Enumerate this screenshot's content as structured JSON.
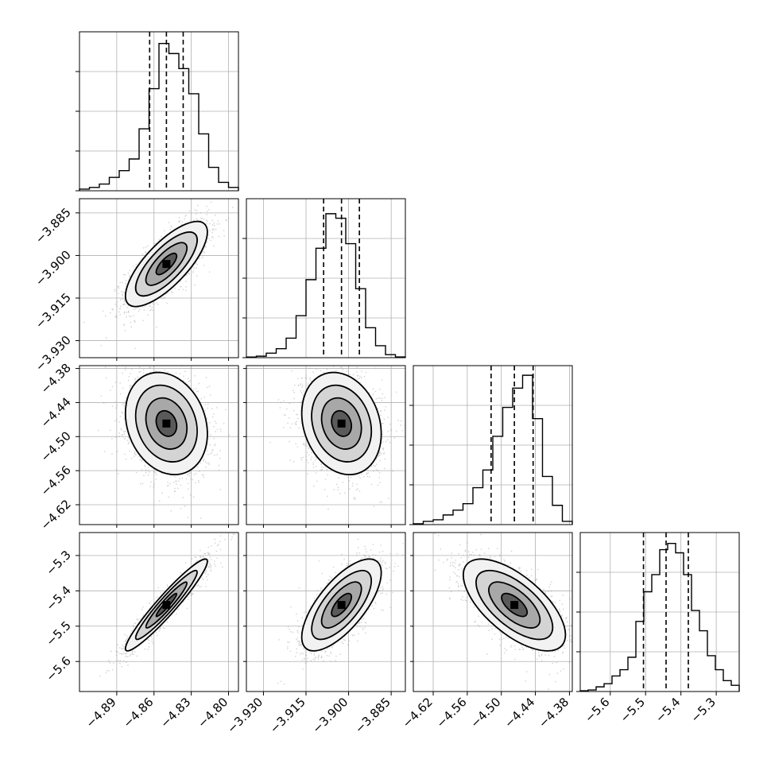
{
  "chart_data": {
    "type": "corner",
    "title": "",
    "grid": true,
    "parameters": [
      {
        "range": [
          -4.92,
          -4.792
        ],
        "ticks": [
          -4.89,
          -4.86,
          -4.83,
          -4.8
        ],
        "tick_labels": [
          "−4.89",
          "−4.86",
          "−4.83",
          "−4.80"
        ],
        "histogram": {
          "bins": [
            -4.92,
            -4.912,
            -4.904,
            -4.896,
            -4.888,
            -4.88,
            -4.872,
            -4.864,
            -4.856,
            -4.848,
            -4.84,
            -4.832,
            -4.824,
            -4.816,
            -4.808,
            -4.8,
            -4.792
          ],
          "counts": [
            1,
            2,
            4,
            8,
            12,
            19,
            37,
            61,
            88,
            82,
            73,
            58,
            34,
            14,
            5,
            2
          ],
          "max": 95
        },
        "quantiles": [
          -4.8635,
          -4.85,
          -4.8365
        ]
      },
      {
        "range": [
          -3.936,
          -3.88
        ],
        "ticks": [
          -3.93,
          -3.915,
          -3.9,
          -3.885
        ],
        "tick_labels": [
          "−3.930",
          "−3.915",
          "−3.900",
          "−3.885"
        ],
        "histogram": {
          "bins": [
            -3.936,
            -3.9325,
            -3.929,
            -3.9255,
            -3.922,
            -3.9185,
            -3.915,
            -3.9115,
            -3.908,
            -3.9045,
            -3.901,
            -3.8975,
            -3.894,
            -3.8905,
            -3.887,
            -3.8835,
            -3.88
          ],
          "counts": [
            0.4,
            1,
            3,
            6,
            13,
            28,
            52,
            73,
            96,
            93,
            76,
            46,
            20,
            8,
            2,
            0.5
          ],
          "max": 106
        },
        "quantiles": [
          -3.9088,
          -3.9025,
          -3.8962
        ]
      },
      {
        "range": [
          -4.655,
          -4.375
        ],
        "ticks": [
          -4.62,
          -4.56,
          -4.5,
          -4.44,
          -4.38
        ],
        "tick_labels": [
          "−4.62",
          "−4.56",
          "−4.50",
          "−4.44",
          "−4.38"
        ],
        "histogram": {
          "bins": [
            -4.655,
            -4.6375,
            -4.62,
            -4.6025,
            -4.585,
            -4.5675,
            -4.55,
            -4.5325,
            -4.515,
            -4.4975,
            -4.48,
            -4.4625,
            -4.445,
            -4.4275,
            -4.41,
            -4.3925,
            -4.375
          ],
          "counts": [
            0.5,
            2,
            3,
            6,
            9,
            13,
            23,
            34,
            55,
            73,
            85,
            93,
            66,
            30,
            12,
            2
          ],
          "max": 99
        },
        "quantiles": [
          -4.518,
          -4.477,
          -4.444
        ]
      },
      {
        "range": [
          -5.685,
          -5.235
        ],
        "ticks": [
          -5.6,
          -5.5,
          -5.4,
          -5.3
        ],
        "tick_labels": [
          "−5.6",
          "−5.5",
          "−5.4",
          "−5.3"
        ],
        "histogram": {
          "bins": [
            -5.685,
            -5.6625,
            -5.64,
            -5.6175,
            -5.595,
            -5.5725,
            -5.55,
            -5.5275,
            -5.505,
            -5.4825,
            -5.46,
            -5.4375,
            -5.415,
            -5.3925,
            -5.37,
            -5.3475,
            -5.325,
            -5.3025,
            -5.28,
            -5.2575,
            -5.235
          ],
          "counts": [
            0.5,
            1,
            3,
            5,
            10,
            14,
            22,
            45,
            64,
            75,
            91,
            95,
            89,
            75,
            52,
            39,
            23,
            14,
            7,
            4
          ],
          "max": 102
        },
        "quantiles": [
          -5.506,
          -5.442,
          -5.379
        ]
      }
    ],
    "pairs": [
      {
        "x": 0,
        "y": 1,
        "mean": [
          -4.85,
          -3.903
        ],
        "sd": [
          0.0165,
          0.0075
        ],
        "rho": 0.75
      },
      {
        "x": 0,
        "y": 2,
        "mean": [
          -4.85,
          -4.477
        ],
        "sd": [
          0.0165,
          0.045
        ],
        "rho": -0.2
      },
      {
        "x": 1,
        "y": 2,
        "mean": [
          -3.9025,
          -4.477
        ],
        "sd": [
          0.007,
          0.045
        ],
        "rho": -0.2
      },
      {
        "x": 0,
        "y": 3,
        "mean": [
          -4.85,
          -5.44
        ],
        "sd": [
          0.0165,
          0.065
        ],
        "rho": 0.95
      },
      {
        "x": 1,
        "y": 3,
        "mean": [
          -3.9025,
          -5.44
        ],
        "sd": [
          0.007,
          0.065
        ],
        "rho": 0.7
      },
      {
        "x": 2,
        "y": 3,
        "mean": [
          -4.477,
          -5.44
        ],
        "sd": [
          0.045,
          0.065
        ],
        "rho": -0.65
      }
    ]
  }
}
